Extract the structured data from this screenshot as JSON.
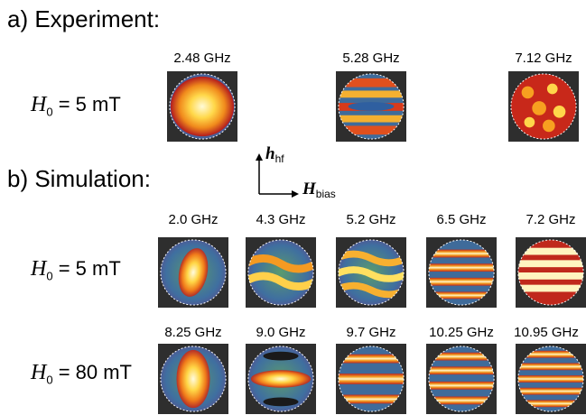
{
  "experiment": {
    "title": "a) Experiment:",
    "row_label": {
      "symbol": "H",
      "sub": "0",
      "rest": " = 5 mT"
    },
    "frequencies": [
      "2.48 GHz",
      "5.28 GHz",
      "7.12 GHz"
    ]
  },
  "simulation": {
    "title": "b) Simulation:",
    "rows": [
      {
        "label": {
          "symbol": "H",
          "sub": "0",
          "rest": " = 5 mT"
        },
        "frequencies": [
          "2.0 GHz",
          "4.3 GHz",
          "5.2 GHz",
          "6.5 GHz",
          "7.2 GHz"
        ]
      },
      {
        "label": {
          "symbol": "H",
          "sub": "0",
          "rest": " = 80 mT"
        },
        "frequencies": [
          "8.25 GHz",
          "9.0 GHz",
          "9.7 GHz",
          "10.25 GHz",
          "10.95 GHz"
        ]
      }
    ]
  },
  "axes": {
    "vertical": {
      "symbol": "h",
      "sub": "hf"
    },
    "horizontal": {
      "symbol": "H",
      "sub": "bias"
    }
  },
  "colors": {
    "tile_bg": "#2e2e2e",
    "outline": "#ffffff"
  }
}
